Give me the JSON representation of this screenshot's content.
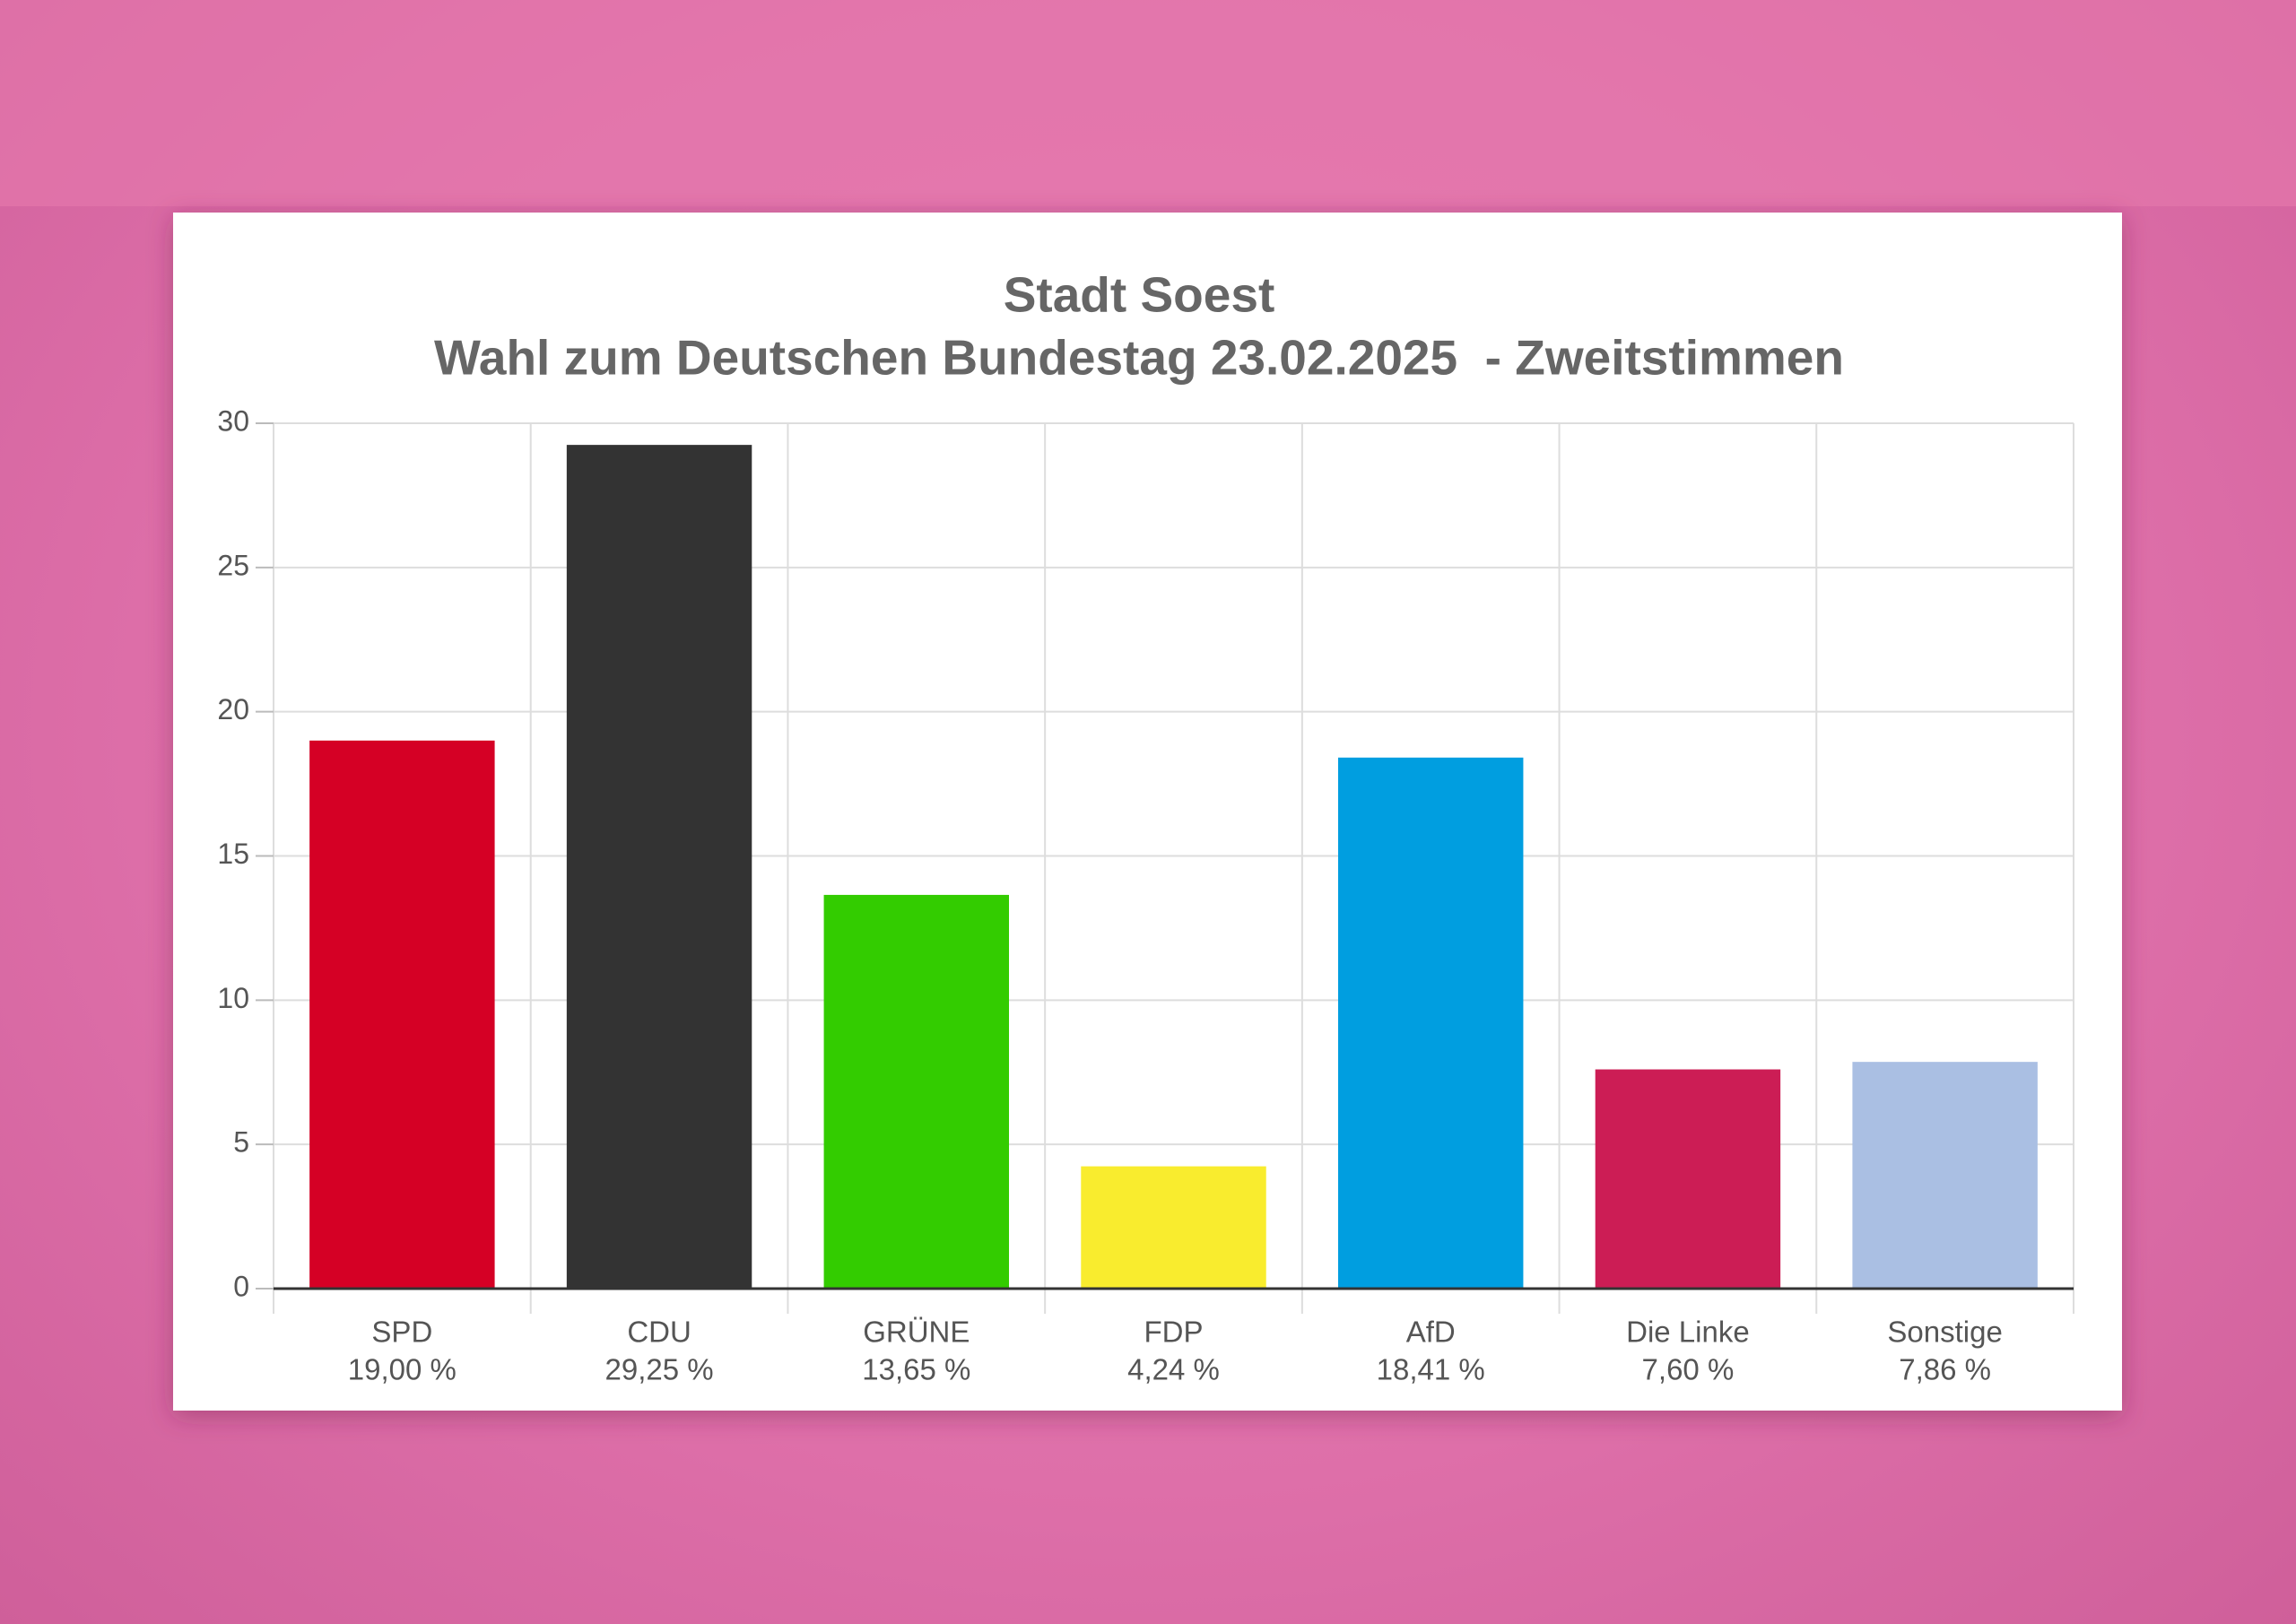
{
  "chart_data": {
    "type": "bar",
    "title": "Stadt Soest",
    "subtitle": "Wahl zum Deutschen Bundestag 23.02.2025  - Zweitstimmen",
    "categories": [
      "SPD",
      "CDU",
      "GRÜNE",
      "FDP",
      "AfD",
      "Die Linke",
      "Sonstige"
    ],
    "values": [
      19.0,
      29.25,
      13.65,
      4.24,
      18.41,
      7.6,
      7.86
    ],
    "value_labels": [
      "19,00 %",
      "29,25 %",
      "13,65 %",
      "4,24 %",
      "18,41 %",
      "7,60 %",
      "7,86 %"
    ],
    "colors": [
      "#d50025",
      "#333333",
      "#33cc00",
      "#f9ec2e",
      "#009ee0",
      "#cc1d55",
      "#aabfe3"
    ],
    "ylim": [
      0,
      30
    ],
    "yticks": [
      0,
      5,
      10,
      15,
      20,
      25,
      30
    ],
    "grid": true
  }
}
